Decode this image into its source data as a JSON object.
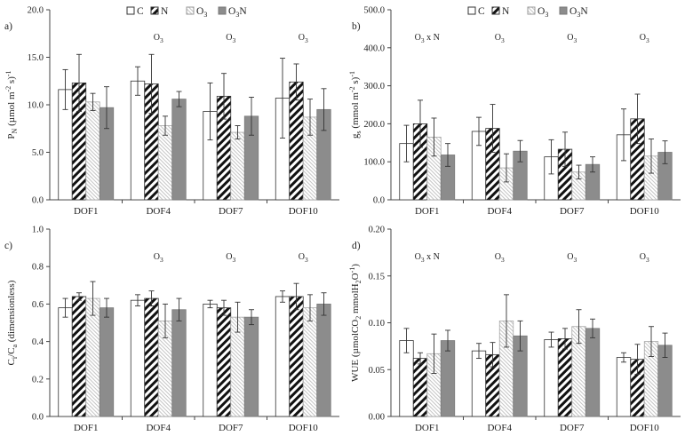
{
  "legend": [
    {
      "key": "C",
      "label": "C",
      "sub": "",
      "pattern": "white"
    },
    {
      "key": "N",
      "label": "N",
      "sub": "",
      "pattern": "hatch"
    },
    {
      "key": "O3",
      "label": "O",
      "sub": "3",
      "pattern": "light"
    },
    {
      "key": "O3N",
      "label": "O",
      "sub": "3",
      "label2": "N",
      "pattern": "dark"
    }
  ],
  "colors": {
    "dark": "#8c8c8c",
    "light_stroke": "#c4c4c4",
    "hatch": "#111111",
    "axis": "#444444"
  },
  "chart_data": [
    {
      "panel": "a)",
      "type": "bar",
      "categories": [
        "DOF1",
        "DOF4",
        "DOF7",
        "DOF10"
      ],
      "ylabel": {
        "pre": "P",
        "sub": "N",
        "mid": " (µmol m",
        "sup1": "-2",
        "mid2": " s",
        "sup2": "-1",
        "post": ")"
      },
      "ylim": [
        0,
        20
      ],
      "yticks": [
        "0.0",
        "5.0",
        "10.0",
        "15.0",
        "20.0"
      ],
      "series": [
        {
          "name": "C",
          "values": [
            11.6,
            12.5,
            9.3,
            10.7
          ],
          "errors": [
            2.1,
            1.5,
            3.0,
            4.2
          ]
        },
        {
          "name": "N",
          "values": [
            12.3,
            12.2,
            10.9,
            12.4
          ],
          "errors": [
            3.0,
            3.1,
            2.4,
            1.9
          ]
        },
        {
          "name": "O3",
          "values": [
            10.3,
            7.8,
            7.1,
            8.7
          ],
          "errors": [
            0.9,
            1.0,
            0.7,
            1.9
          ]
        },
        {
          "name": "O3N",
          "values": [
            9.7,
            10.6,
            8.8,
            9.5
          ],
          "errors": [
            2.2,
            0.8,
            2.0,
            2.2
          ]
        }
      ],
      "significance": [
        {
          "cat": 1,
          "text": "O",
          "sub": "3"
        },
        {
          "cat": 2,
          "text": "O",
          "sub": "3"
        },
        {
          "cat": 3,
          "text": "O",
          "sub": "3"
        }
      ]
    },
    {
      "panel": "b)",
      "type": "bar",
      "categories": [
        "DOF1",
        "DOF4",
        "DOF7",
        "DOF10"
      ],
      "ylabel": {
        "pre": "g",
        "sub": "s",
        "mid": " (mmol m",
        "sup1": "-2",
        "mid2": " s",
        "sup2": "-1",
        "post": ")"
      },
      "ylim": [
        0,
        500
      ],
      "yticks": [
        "0.0",
        "100.0",
        "200.0",
        "300.0",
        "400.0",
        "500.0"
      ],
      "series": [
        {
          "name": "C",
          "values": [
            148,
            180,
            113,
            171
          ],
          "errors": [
            48,
            37,
            45,
            68
          ]
        },
        {
          "name": "N",
          "values": [
            200,
            188,
            133,
            213
          ],
          "errors": [
            62,
            63,
            45,
            65
          ]
        },
        {
          "name": "O3",
          "values": [
            165,
            84,
            73,
            115
          ],
          "errors": [
            50,
            37,
            18,
            45
          ]
        },
        {
          "name": "O3N",
          "values": [
            118,
            128,
            93,
            125
          ],
          "errors": [
            30,
            28,
            20,
            30
          ]
        }
      ],
      "significance": [
        {
          "cat": 0,
          "text": "O",
          "sub": "3",
          "suffix": " x N"
        },
        {
          "cat": 1,
          "text": "O",
          "sub": "3"
        },
        {
          "cat": 2,
          "text": "O",
          "sub": "3"
        },
        {
          "cat": 3,
          "text": "O",
          "sub": "3"
        }
      ]
    },
    {
      "panel": "c)",
      "type": "bar",
      "categories": [
        "DOF1",
        "DOF4",
        "DOF7",
        "DOF10"
      ],
      "ylabel": {
        "pre": "C",
        "sub": "i",
        "mid": "/C",
        "sub2": "a",
        "post": " (dimensionless)"
      },
      "ylim": [
        0,
        1
      ],
      "yticks": [
        "0.0",
        "0.2",
        "0.4",
        "0.6",
        "0.8",
        "1.0"
      ],
      "series": [
        {
          "name": "C",
          "values": [
            0.58,
            0.62,
            0.6,
            0.64
          ],
          "errors": [
            0.05,
            0.03,
            0.02,
            0.03
          ]
        },
        {
          "name": "N",
          "values": [
            0.64,
            0.63,
            0.58,
            0.64
          ],
          "errors": [
            0.02,
            0.04,
            0.04,
            0.07
          ]
        },
        {
          "name": "O3",
          "values": [
            0.63,
            0.51,
            0.53,
            0.58
          ],
          "errors": [
            0.09,
            0.09,
            0.08,
            0.07
          ]
        },
        {
          "name": "O3N",
          "values": [
            0.58,
            0.57,
            0.53,
            0.6
          ],
          "errors": [
            0.05,
            0.06,
            0.04,
            0.06
          ]
        }
      ],
      "significance": [
        {
          "cat": 1,
          "text": "O",
          "sub": "3"
        },
        {
          "cat": 2,
          "text": "O",
          "sub": "3"
        },
        {
          "cat": 3,
          "text": "O",
          "sub": "3"
        }
      ]
    },
    {
      "panel": "d)",
      "type": "bar",
      "categories": [
        "DOF1",
        "DOF4",
        "DOF7",
        "DOF10"
      ],
      "ylabel": {
        "pre": "WUE (µmolCO",
        "sub": "2",
        "mid": " mmolH",
        "sub2": "2",
        "post": "O",
        "sup2": "-1",
        "post2": ")"
      },
      "ylim": [
        0,
        0.2
      ],
      "yticks": [
        "0.00",
        "0.05",
        "0.10",
        "0.15",
        "0.20"
      ],
      "series": [
        {
          "name": "C",
          "values": [
            0.081,
            0.07,
            0.082,
            0.063
          ],
          "errors": [
            0.013,
            0.008,
            0.008,
            0.005
          ]
        },
        {
          "name": "N",
          "values": [
            0.062,
            0.066,
            0.083,
            0.061
          ],
          "errors": [
            0.006,
            0.013,
            0.011,
            0.016
          ]
        },
        {
          "name": "O3",
          "values": [
            0.067,
            0.102,
            0.096,
            0.08
          ],
          "errors": [
            0.021,
            0.028,
            0.018,
            0.016
          ]
        },
        {
          "name": "O3N",
          "values": [
            0.081,
            0.086,
            0.094,
            0.076
          ],
          "errors": [
            0.011,
            0.016,
            0.01,
            0.013
          ]
        }
      ],
      "significance": [
        {
          "cat": 0,
          "text": "O",
          "sub": "3",
          "suffix": " x N"
        },
        {
          "cat": 1,
          "text": "O",
          "sub": "3"
        },
        {
          "cat": 2,
          "text": "O",
          "sub": "3"
        },
        {
          "cat": 3,
          "text": "O",
          "sub": "3"
        }
      ]
    }
  ]
}
